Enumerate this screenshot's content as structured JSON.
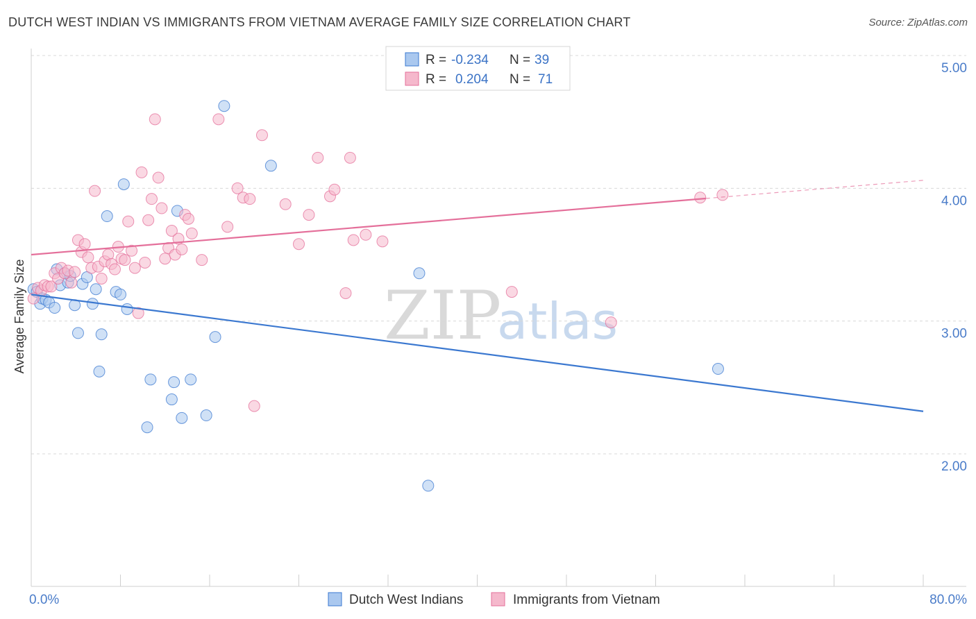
{
  "header": {
    "title": "DUTCH WEST INDIAN VS IMMIGRANTS FROM VIETNAM AVERAGE FAMILY SIZE CORRELATION CHART",
    "source": "Source: ZipAtlas.com"
  },
  "watermark": {
    "zip": "ZIP",
    "atlas": "atlas"
  },
  "legend": {
    "rows": [
      {
        "r_label": "R =",
        "r_value": "-0.234",
        "n_label": "N =",
        "n_value": "39"
      },
      {
        "r_label": "R =",
        "r_value": "0.204",
        "n_label": "N =",
        "n_value": "71"
      }
    ]
  },
  "bottom_legend": {
    "items": [
      "Dutch West Indians",
      "Immigrants from Vietnam"
    ]
  },
  "colors": {
    "blue": "#3b78d0",
    "blue_fill": "#aac8ef",
    "pink": "#e46f9a",
    "pink_fill": "#f5b8cc",
    "grid": "#d8d8d8",
    "axis_text": "#4a7cc9"
  },
  "chart_data": {
    "type": "scatter",
    "title": "DUTCH WEST INDIAN VS IMMIGRANTS FROM VIETNAM AVERAGE FAMILY SIZE CORRELATION CHART",
    "xlabel": "",
    "ylabel": "Average Family Size",
    "xlim": [
      0,
      80
    ],
    "ylim": [
      1.0,
      5.1
    ],
    "x_tick_labels": [
      "0.0%",
      "80.0%"
    ],
    "y_ticks": [
      2.0,
      3.0,
      4.0,
      5.0
    ],
    "y_tick_labels": [
      "2.00",
      "3.00",
      "4.00",
      "5.00"
    ],
    "grid": true,
    "legend_position": "top-center",
    "series": [
      {
        "name": "Dutch West Indians",
        "color": "#3b78d0",
        "points": [
          [
            0.2,
            3.24
          ],
          [
            0.5,
            3.22
          ],
          [
            0.8,
            3.13
          ],
          [
            1.0,
            3.17
          ],
          [
            1.3,
            3.16
          ],
          [
            1.6,
            3.14
          ],
          [
            2.1,
            3.1
          ],
          [
            2.3,
            3.39
          ],
          [
            2.6,
            3.27
          ],
          [
            3.0,
            3.36
          ],
          [
            3.3,
            3.29
          ],
          [
            3.5,
            3.34
          ],
          [
            3.9,
            3.12
          ],
          [
            4.2,
            2.91
          ],
          [
            4.6,
            3.28
          ],
          [
            5.0,
            3.33
          ],
          [
            5.5,
            3.13
          ],
          [
            5.8,
            3.24
          ],
          [
            6.1,
            2.62
          ],
          [
            6.3,
            2.9
          ],
          [
            6.8,
            3.79
          ],
          [
            7.6,
            3.22
          ],
          [
            8.0,
            3.2
          ],
          [
            8.3,
            4.03
          ],
          [
            8.6,
            3.09
          ],
          [
            10.4,
            2.2
          ],
          [
            10.7,
            2.56
          ],
          [
            12.6,
            2.41
          ],
          [
            12.8,
            2.54
          ],
          [
            13.1,
            3.83
          ],
          [
            13.5,
            2.27
          ],
          [
            14.3,
            2.56
          ],
          [
            15.7,
            2.29
          ],
          [
            16.5,
            2.88
          ],
          [
            17.3,
            4.62
          ],
          [
            21.5,
            4.17
          ],
          [
            34.8,
            3.36
          ],
          [
            35.6,
            1.76
          ],
          [
            61.6,
            2.64
          ]
        ],
        "trend": {
          "x": [
            0,
            80
          ],
          "y": [
            3.2,
            2.32
          ],
          "dashed_from": null
        }
      },
      {
        "name": "Immigrants from Vietnam",
        "color": "#e46f9a",
        "points": [
          [
            0.2,
            3.17
          ],
          [
            0.6,
            3.25
          ],
          [
            0.9,
            3.23
          ],
          [
            1.2,
            3.27
          ],
          [
            1.5,
            3.26
          ],
          [
            1.8,
            3.26
          ],
          [
            2.1,
            3.36
          ],
          [
            2.4,
            3.32
          ],
          [
            2.7,
            3.4
          ],
          [
            3.0,
            3.36
          ],
          [
            3.3,
            3.38
          ],
          [
            3.6,
            3.29
          ],
          [
            3.9,
            3.37
          ],
          [
            4.2,
            3.61
          ],
          [
            4.5,
            3.52
          ],
          [
            4.8,
            3.58
          ],
          [
            5.1,
            3.48
          ],
          [
            5.4,
            3.4
          ],
          [
            5.7,
            3.98
          ],
          [
            6.0,
            3.41
          ],
          [
            6.3,
            3.32
          ],
          [
            6.6,
            3.45
          ],
          [
            6.9,
            3.5
          ],
          [
            7.2,
            3.43
          ],
          [
            7.5,
            3.39
          ],
          [
            7.8,
            3.56
          ],
          [
            8.1,
            3.47
          ],
          [
            8.4,
            3.46
          ],
          [
            8.7,
            3.75
          ],
          [
            9.0,
            3.53
          ],
          [
            9.3,
            3.4
          ],
          [
            9.6,
            3.06
          ],
          [
            9.9,
            4.12
          ],
          [
            10.2,
            3.44
          ],
          [
            10.5,
            3.76
          ],
          [
            10.8,
            3.92
          ],
          [
            11.1,
            4.52
          ],
          [
            11.4,
            4.08
          ],
          [
            11.7,
            3.85
          ],
          [
            12.0,
            3.47
          ],
          [
            12.3,
            3.55
          ],
          [
            12.6,
            3.68
          ],
          [
            12.9,
            3.5
          ],
          [
            13.2,
            3.62
          ],
          [
            13.5,
            3.54
          ],
          [
            13.8,
            3.8
          ],
          [
            14.1,
            3.77
          ],
          [
            14.4,
            3.66
          ],
          [
            15.3,
            3.46
          ],
          [
            16.8,
            4.52
          ],
          [
            17.6,
            3.71
          ],
          [
            18.5,
            4.0
          ],
          [
            19.0,
            3.93
          ],
          [
            19.6,
            3.92
          ],
          [
            20.0,
            2.36
          ],
          [
            20.7,
            4.4
          ],
          [
            22.8,
            3.88
          ],
          [
            24.0,
            3.58
          ],
          [
            24.9,
            3.8
          ],
          [
            25.7,
            4.23
          ],
          [
            26.8,
            3.94
          ],
          [
            27.2,
            3.99
          ],
          [
            28.2,
            3.21
          ],
          [
            28.6,
            4.23
          ],
          [
            28.9,
            3.61
          ],
          [
            30.0,
            3.65
          ],
          [
            31.5,
            3.6
          ],
          [
            43.1,
            3.22
          ],
          [
            52.0,
            2.99
          ],
          [
            60.0,
            3.93
          ],
          [
            62.0,
            3.95
          ]
        ],
        "trend": {
          "x": [
            0,
            80
          ],
          "y": [
            3.5,
            4.06
          ],
          "dashed_from": 60.5
        }
      }
    ]
  }
}
